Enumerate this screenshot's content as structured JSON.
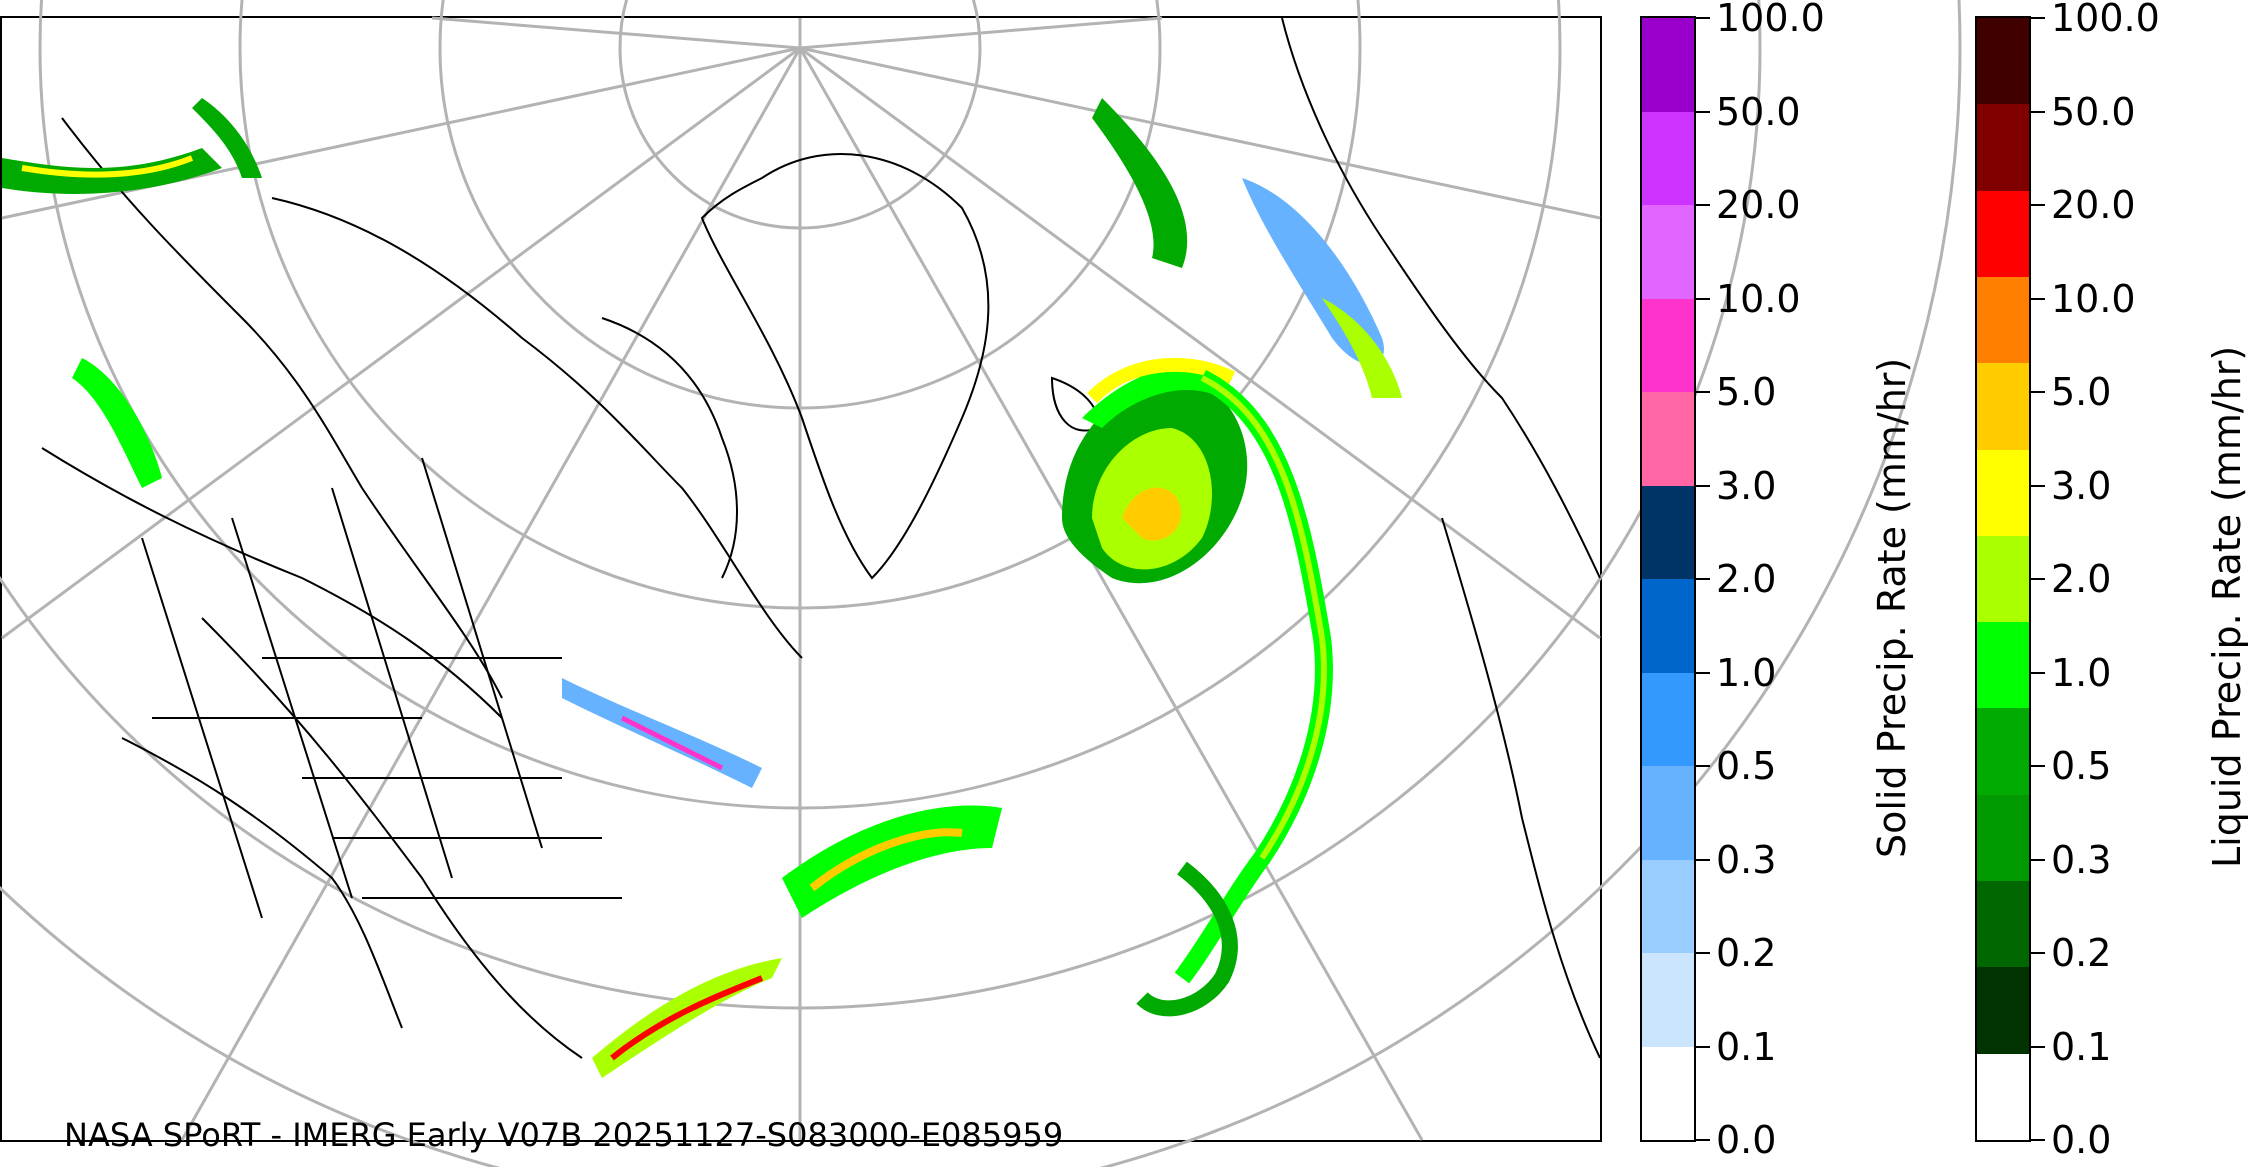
{
  "caption": "NASA SPoRT - IMERG Early V07B 20251127-S083000-E085959",
  "solid_scale": {
    "label": "Solid Precip. Rate (mm/hr)",
    "ticks": [
      "0.0",
      "0.1",
      "0.2",
      "0.3",
      "0.5",
      "1.0",
      "2.0",
      "3.0",
      "5.0",
      "10.0",
      "20.0",
      "50.0",
      "100.0"
    ],
    "colors": [
      "#ffffff",
      "#cce5ff",
      "#99ccff",
      "#66b2ff",
      "#3399ff",
      "#0066cc",
      "#003366",
      "#ff66a3",
      "#ff33cc",
      "#e066ff",
      "#cc33ff",
      "#9900cc"
    ]
  },
  "liquid_scale": {
    "label": "Liquid Precip. Rate (mm/hr)",
    "ticks": [
      "0.0",
      "0.1",
      "0.2",
      "0.3",
      "0.5",
      "1.0",
      "2.0",
      "3.0",
      "5.0",
      "10.0",
      "20.0",
      "50.0",
      "100.0"
    ],
    "colors": [
      "#ffffff",
      "#003300",
      "#006600",
      "#009900",
      "#00aa00",
      "#00ff00",
      "#aaff00",
      "#ffff00",
      "#ffcc00",
      "#ff8000",
      "#ff0000",
      "#800000",
      "#400000"
    ]
  }
}
